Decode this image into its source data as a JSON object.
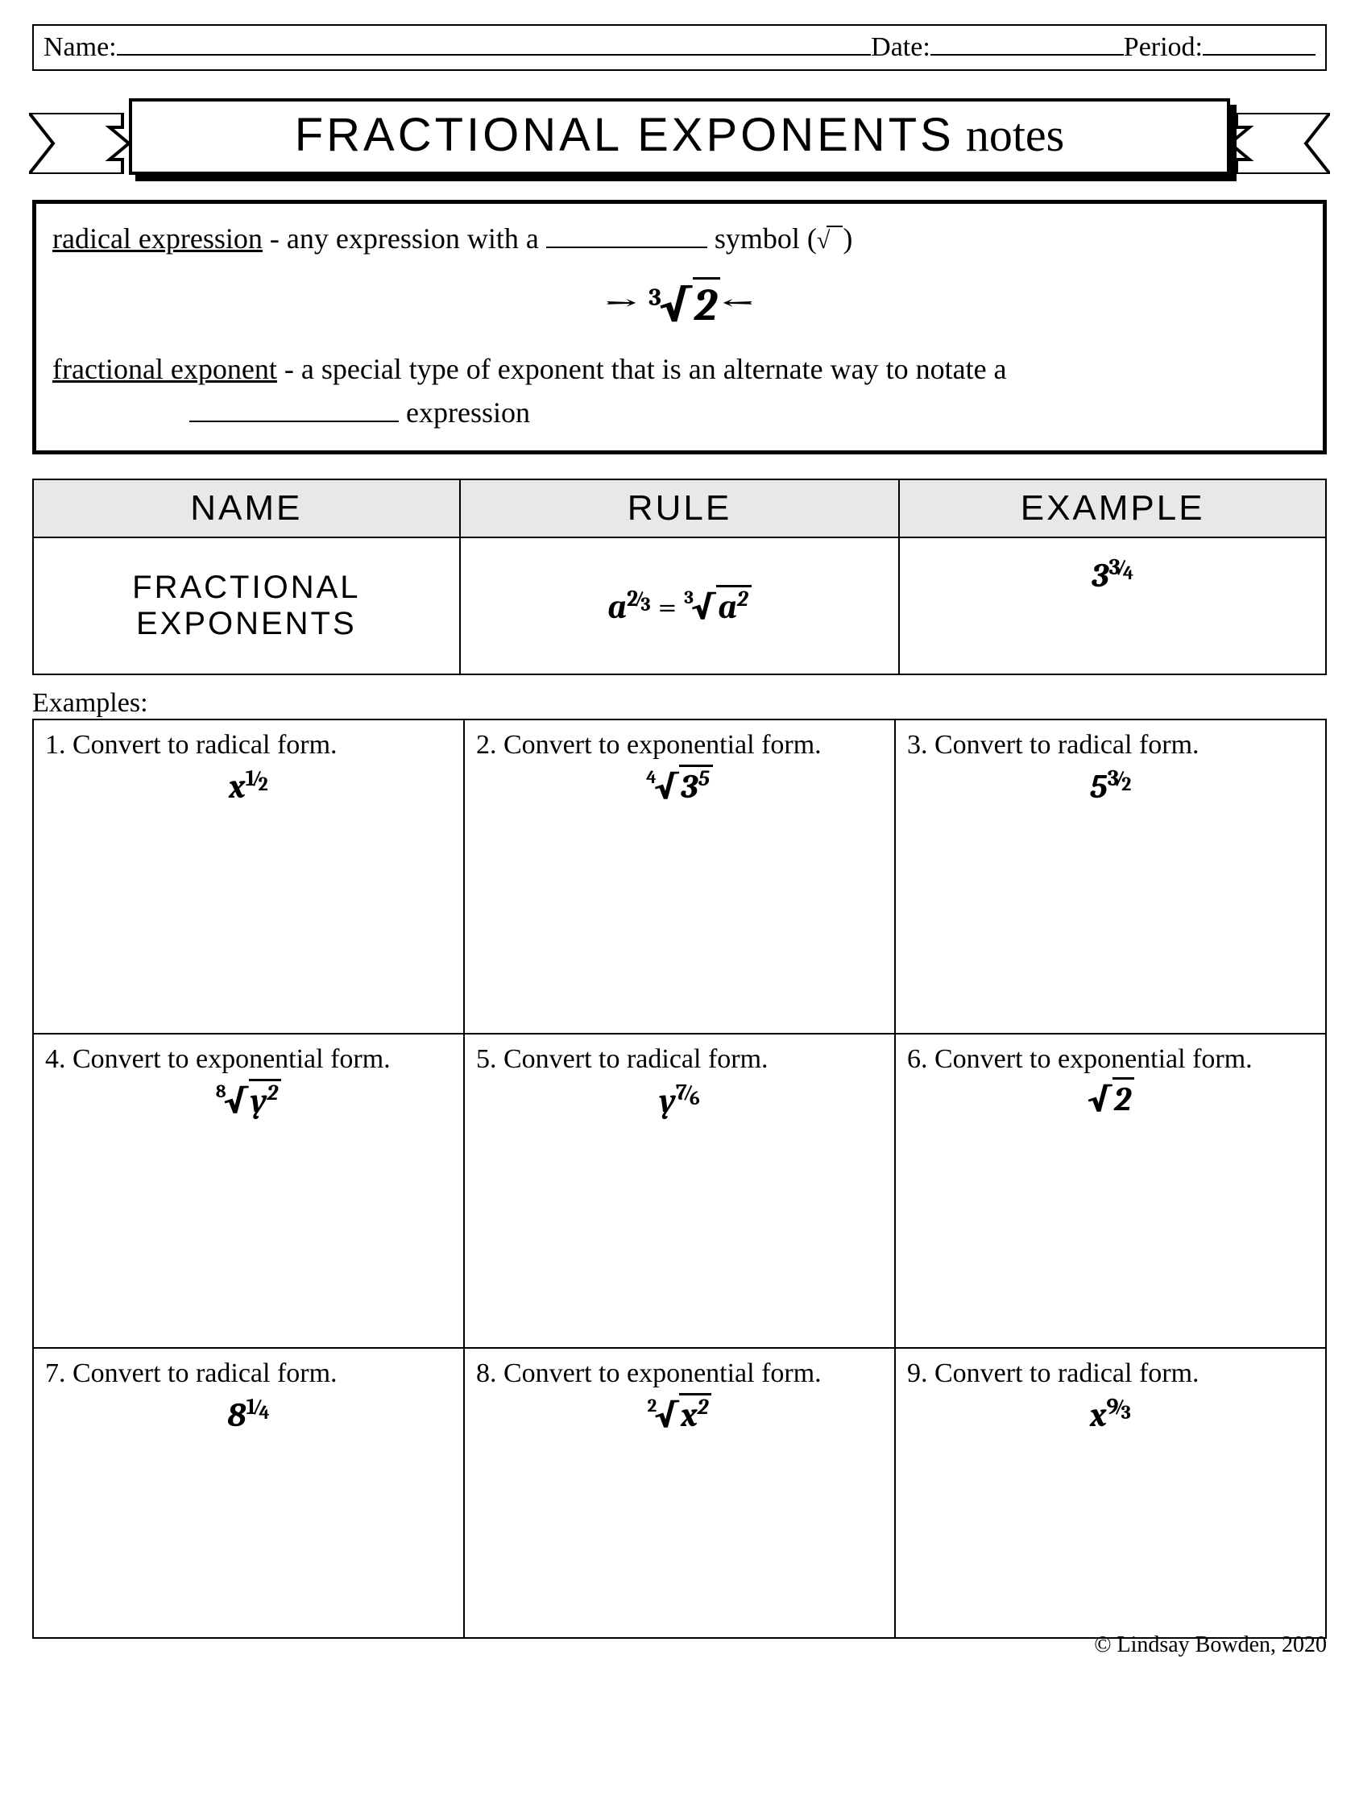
{
  "colors": {
    "bg": "#ffffff",
    "ink": "#000000",
    "header_fill": "#e8e8e8"
  },
  "header": {
    "name_label": "Name:",
    "date_label": "Date:",
    "period_label": "Period:"
  },
  "title": {
    "main": "FRACTIONAL EXPONENTS",
    "script": "notes"
  },
  "definitions": {
    "radical_term": "radical expression",
    "radical_text_a": " - any expression with a ",
    "radical_text_b": " symbol (",
    "radical_text_c": ")",
    "center_index": "3",
    "center_radicand": "2",
    "fractional_term": "fractional exponent",
    "fractional_text_a": " - a special type of exponent that is an alternate way to notate a ",
    "fractional_text_b": " expression"
  },
  "rules": {
    "headers": {
      "name": "NAME",
      "rule": "RULE",
      "example": "EXAMPLE"
    },
    "row": {
      "name": "FRACTIONAL EXPONENTS",
      "rule_lhs_base": "a",
      "rule_lhs_num": "2",
      "rule_lhs_den": "3",
      "rule_rhs_index": "3",
      "rule_rhs_base": "a",
      "rule_rhs_exp": "2",
      "example_base": "3",
      "example_num": "3",
      "example_den": "4"
    }
  },
  "examples_label": "Examples:",
  "examples": [
    {
      "n": "1.",
      "prompt": "Convert to radical form.",
      "mtype": "frac",
      "base": "x",
      "num": "1",
      "den": "2"
    },
    {
      "n": "2.",
      "prompt": "Convert to exponential form.",
      "mtype": "radical",
      "index": "4",
      "base": "3",
      "exp": "5"
    },
    {
      "n": "3.",
      "prompt": "Convert to radical form.",
      "mtype": "frac",
      "base": "5",
      "num": "3",
      "den": "2"
    },
    {
      "n": "4.",
      "prompt": "Convert to exponential form.",
      "mtype": "radical",
      "index": "8",
      "base": "y",
      "exp": "2"
    },
    {
      "n": "5.",
      "prompt": "Convert to radical form.",
      "mtype": "frac",
      "base": "y",
      "num": "7",
      "den": "6"
    },
    {
      "n": "6.",
      "prompt": "Convert to exponential form.",
      "mtype": "radical",
      "index": "",
      "base": "2",
      "exp": ""
    },
    {
      "n": "7.",
      "prompt": "Convert to radical form.",
      "mtype": "frac",
      "base": "8",
      "num": "1",
      "den": "4"
    },
    {
      "n": "8.",
      "prompt": "Convert to exponential form.",
      "mtype": "radical",
      "index": "2",
      "base": "x",
      "exp": "2"
    },
    {
      "n": "9.",
      "prompt": "Convert to radical form.",
      "mtype": "frac",
      "base": "x",
      "num": "9",
      "den": "3"
    }
  ],
  "copyright": "© Lindsay Bowden, 2020"
}
